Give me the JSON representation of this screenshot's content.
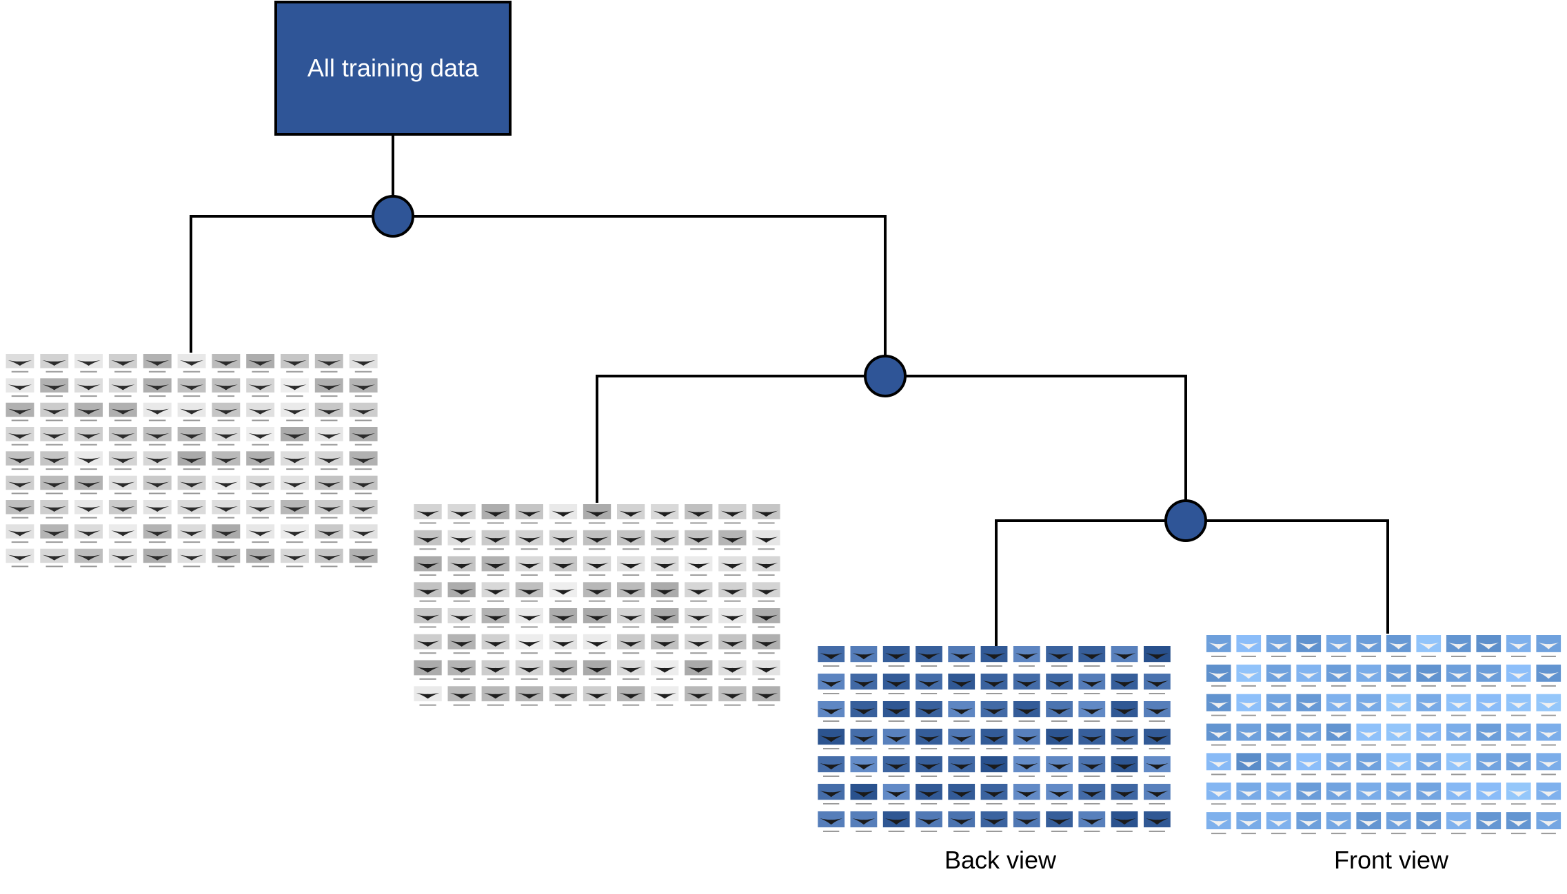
{
  "root": {
    "label": "All training data"
  },
  "leaves": [
    {
      "id": "group-1",
      "caption": "",
      "tone": "grayscale",
      "rows": 9,
      "cols": 11,
      "thumb_fill": "#d9d9d9",
      "whale_fill": "#2b2b2b"
    },
    {
      "id": "group-2",
      "caption": "",
      "tone": "grayscale",
      "rows": 8,
      "cols": 11,
      "thumb_fill": "#e6e6e6",
      "whale_fill": "#1f1f1f"
    },
    {
      "id": "back-view",
      "caption": "Back view",
      "tone": "blue",
      "rows": 7,
      "cols": 11,
      "thumb_fill": "#3f6fa8",
      "whale_fill": "#1a1a1a"
    },
    {
      "id": "front-view",
      "caption": "Front view",
      "tone": "blue",
      "rows": 7,
      "cols": 12,
      "thumb_fill": "#6f9fd3",
      "whale_fill": "#f0f0f0"
    }
  ],
  "colors": {
    "root_fill": "#2f5597",
    "node_fill": "#2f5597",
    "line": "#000000"
  }
}
